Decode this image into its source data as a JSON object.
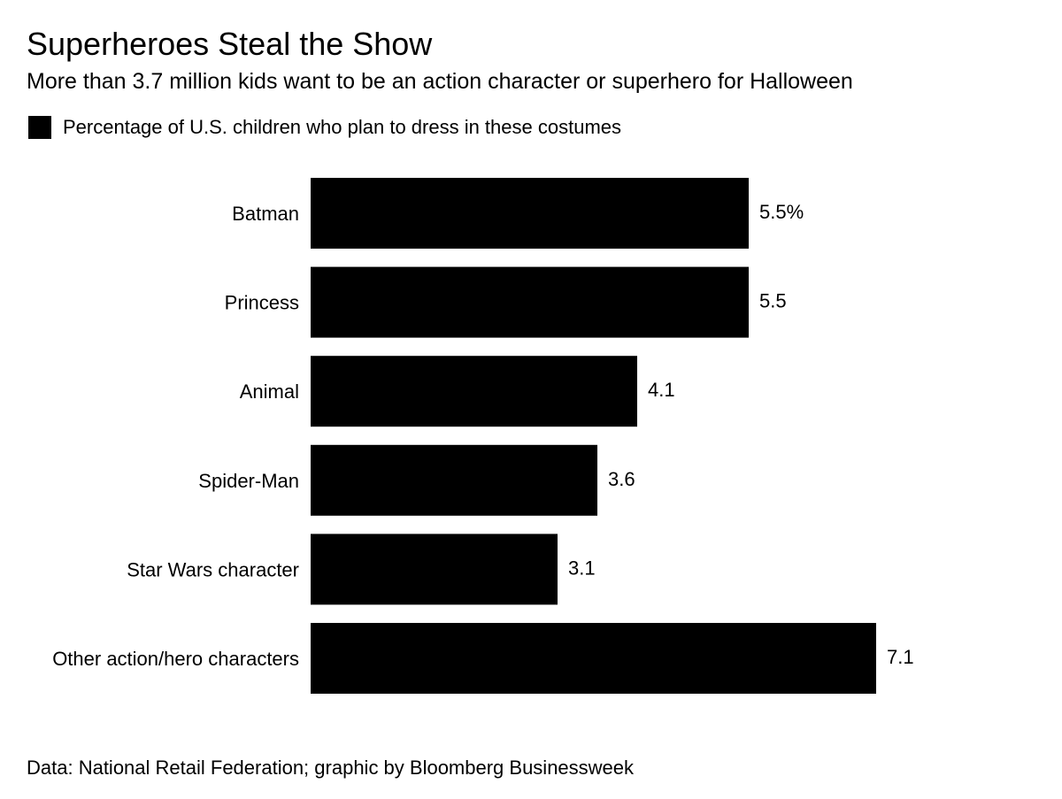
{
  "chart_data": {
    "type": "bar",
    "orientation": "horizontal",
    "title": "Superheroes Steal the Show",
    "subtitle": "More than 3.7 million kids want to be an action character or superhero for Halloween",
    "legend": {
      "position": "top-left",
      "entries": [
        "Percentage of U.S. children who plan to dress in these costumes"
      ]
    },
    "categories": [
      "Batman",
      "Princess",
      "Animal",
      "Spider-Man",
      "Star Wars character",
      "Other action/hero characters"
    ],
    "series": [
      {
        "name": "Percentage of U.S. children who plan to dress in these costumes",
        "values": [
          5.5,
          5.5,
          4.1,
          3.6,
          3.1,
          7.1
        ],
        "color": "#000000"
      }
    ],
    "data_labels": [
      "5.5%",
      "5.5",
      "4.1",
      "3.6",
      "3.1",
      "7.1"
    ],
    "xlim": [
      0,
      7.1
    ],
    "grid": false,
    "source": "Data: National Retail Federation; graphic by Bloomberg Businessweek"
  }
}
